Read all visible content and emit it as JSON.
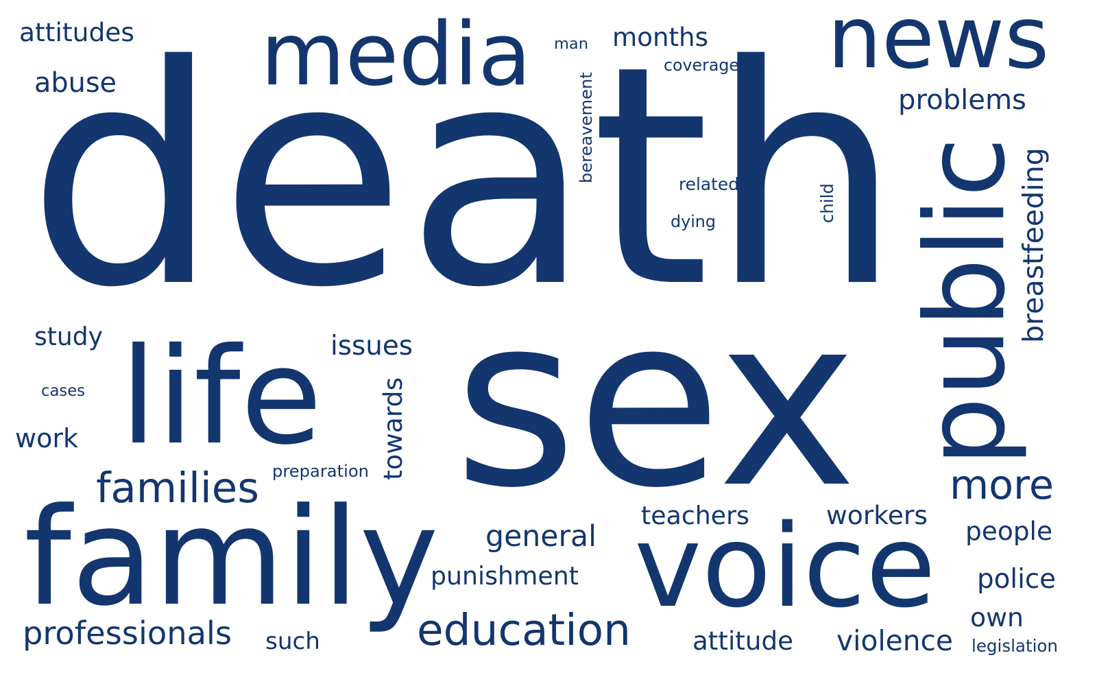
{
  "word_cloud": {
    "color": "#13366f",
    "background": "#ffffff",
    "words": [
      {
        "text": "death",
        "rotate": false
      },
      {
        "text": "sex",
        "rotate": false
      },
      {
        "text": "family",
        "rotate": false
      },
      {
        "text": "voice",
        "rotate": false
      },
      {
        "text": "public",
        "rotate": true
      },
      {
        "text": "media",
        "rotate": false
      },
      {
        "text": "news",
        "rotate": false
      },
      {
        "text": "life",
        "rotate": false
      },
      {
        "text": "education",
        "rotate": false
      },
      {
        "text": "families",
        "rotate": false
      },
      {
        "text": "more",
        "rotate": false
      },
      {
        "text": "professionals",
        "rotate": false
      },
      {
        "text": "breastfeeding",
        "rotate": true
      },
      {
        "text": "general",
        "rotate": false
      },
      {
        "text": "violence",
        "rotate": false
      },
      {
        "text": "attitude",
        "rotate": false
      },
      {
        "text": "teachers",
        "rotate": false
      },
      {
        "text": "workers",
        "rotate": false
      },
      {
        "text": "issues",
        "rotate": false
      },
      {
        "text": "problems",
        "rotate": false
      },
      {
        "text": "attitudes",
        "rotate": false
      },
      {
        "text": "abuse",
        "rotate": false
      },
      {
        "text": "months",
        "rotate": false
      },
      {
        "text": "punishment",
        "rotate": false
      },
      {
        "text": "people",
        "rotate": false
      },
      {
        "text": "police",
        "rotate": false
      },
      {
        "text": "towards",
        "rotate": true
      },
      {
        "text": "study",
        "rotate": false
      },
      {
        "text": "work",
        "rotate": false
      },
      {
        "text": "such",
        "rotate": false
      },
      {
        "text": "own",
        "rotate": false
      },
      {
        "text": "bereavement",
        "rotate": true
      },
      {
        "text": "preparation",
        "rotate": false
      },
      {
        "text": "related",
        "rotate": false
      },
      {
        "text": "coverage",
        "rotate": false
      },
      {
        "text": "dying",
        "rotate": false
      },
      {
        "text": "legislation",
        "rotate": false
      },
      {
        "text": "cases",
        "rotate": false
      },
      {
        "text": "man",
        "rotate": false
      },
      {
        "text": "child",
        "rotate": true
      }
    ]
  }
}
